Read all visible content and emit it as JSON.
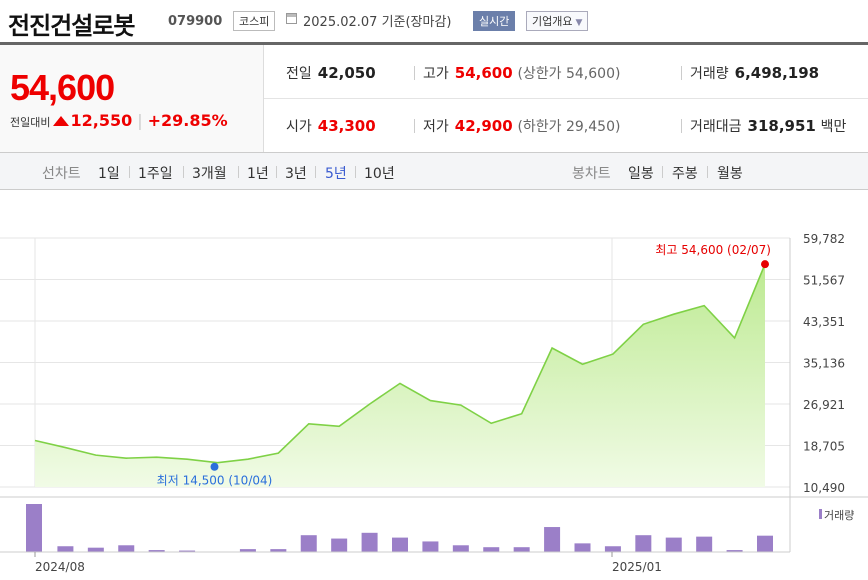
{
  "header": {
    "name": "전진건설로봇",
    "code": "079900",
    "market": "코스피",
    "date_text": "2025.02.07  기준(장마감)",
    "realtime_label": "실시간",
    "company_label": "기업개요",
    "company_arrow": "▼"
  },
  "price": {
    "current": "54,600",
    "change_label": "전일대비",
    "change": "12,550",
    "change_pct": "+29.85%",
    "colors": {
      "up": "#e60000",
      "down": "#0055e6"
    }
  },
  "stats": {
    "prev_label": "전일",
    "prev": "42,050",
    "high_label": "고가",
    "high": "54,600",
    "high_limit": "(상한가 54,600)",
    "volume_label": "거래량",
    "volume": "6,498,198",
    "open_label": "시가",
    "open": "43,300",
    "low_label": "저가",
    "low": "42,900",
    "low_limit": "(하한가 29,450)",
    "amount_label": "거래대금",
    "amount": "318,951",
    "amount_unit": "백만"
  },
  "tabs": {
    "line_label": "선차트",
    "line_tabs": [
      "1일",
      "1주일",
      "3개월",
      "1년",
      "3년",
      "5년",
      "10년"
    ],
    "selected": "5년",
    "candle_label": "봉차트",
    "candle_tabs": [
      "일봉",
      "주봉",
      "월봉"
    ]
  },
  "chart_data": {
    "type": "area",
    "x_labels": [
      "2024/08",
      "2025/01"
    ],
    "values": [
      19700,
      18300,
      16800,
      16200,
      16400,
      16000,
      15300,
      16000,
      17200,
      23000,
      22500,
      26900,
      31000,
      27600,
      26700,
      23100,
      25000,
      38000,
      34800,
      36800,
      42700,
      44700,
      46400,
      40000,
      54600
    ],
    "y_ticks": [
      "59,782",
      "51,567",
      "43,351",
      "35,136",
      "26,921",
      "18,705",
      "10,490"
    ],
    "ylim": [
      10490,
      59782
    ],
    "max_label": "최고 54,600 (02/07)",
    "min_label": "최저 14,500 (10/04)",
    "min_value": 14500,
    "min_index": 6,
    "volume_legend": "거래량",
    "volume_values": [
      100,
      12,
      9,
      14,
      4,
      3,
      0,
      6,
      6,
      35,
      28,
      40,
      30,
      22,
      14,
      10,
      10,
      52,
      18,
      12,
      35,
      30,
      32,
      4,
      34
    ],
    "colors": {
      "line": "#7fd146",
      "fill_top": "#bdea92",
      "fill_bottom": "#f1fbe6",
      "max_marker": "#e60000",
      "min_marker": "#2a6fdb",
      "volume_bar": "#9b7fc8",
      "grid": "#e6e6e6"
    }
  }
}
